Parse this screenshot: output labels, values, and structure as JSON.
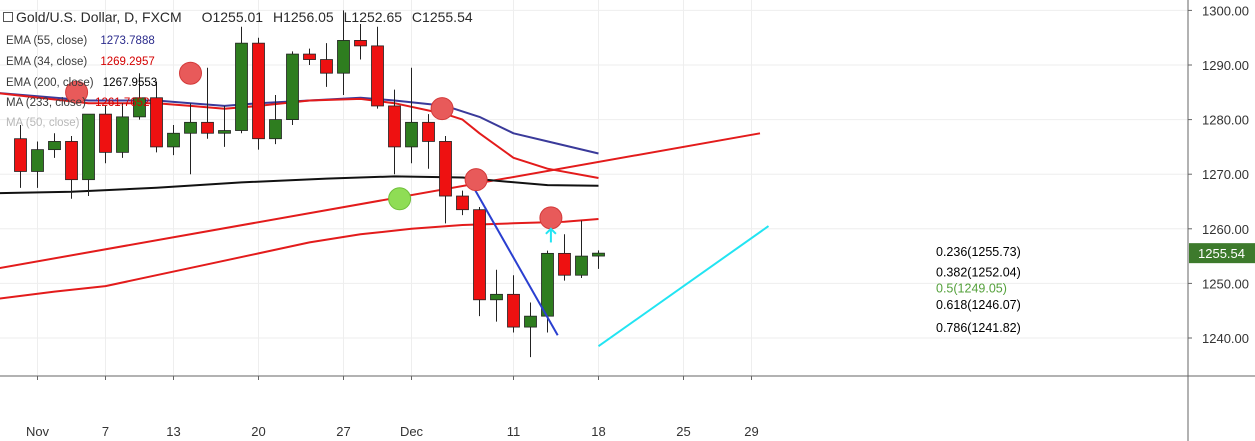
{
  "header": {
    "symbol": "Gold/U.S. Dollar, D, FXCM",
    "ohlc": [
      {
        "k": "O",
        "v": "1255.01"
      },
      {
        "k": "H",
        "v": "1256.05"
      },
      {
        "k": "L",
        "v": "1252.65"
      },
      {
        "k": "C",
        "v": "1255.54"
      }
    ]
  },
  "indicators": [
    {
      "label": "EMA (55, close)",
      "value": "1273.7888",
      "color": "#2b2b8c"
    },
    {
      "label": "EMA (34, close)",
      "value": "1269.2957",
      "color": "#d40000"
    },
    {
      "label": "EMA (200, close)",
      "value": "1267.9553",
      "color": "#000000"
    },
    {
      "label": "MA (233, close)",
      "value": "1261.7652",
      "color": "#d40000"
    },
    {
      "label": "MA (50, close)",
      "value": "",
      "color": "#aaaaaa"
    }
  ],
  "colors": {
    "up": "#2e7d1f",
    "down": "#ee1111",
    "ema55": "#3a3a9a",
    "ema34": "#e31b1b",
    "ema200": "#111111",
    "ma233": "#e31b1b",
    "trend": "#e31b1b",
    "fib_down": "#2a3fd0",
    "fib_up": "#22e4f2",
    "marker_red": "#e85a5a",
    "marker_green": "#8fdd55",
    "last_price_bg": "#3d7a2c",
    "grid": "#eeeeee",
    "axis_text": "#333333"
  },
  "chart_data": {
    "type": "candlestick",
    "title": "Gold/U.S. Dollar, D, FXCM",
    "ylim": [
      1231,
      1303
    ],
    "y_ticks": [
      1240,
      1250,
      1260,
      1270,
      1280,
      1290,
      1300
    ],
    "y_tick_labels": [
      "1240.00",
      "1250.00",
      "1260.00",
      "1270.00",
      "1280.00",
      "1290.00",
      "1300.00"
    ],
    "x_tick_labels": [
      {
        "t": 0,
        "label": "Nov"
      },
      {
        "t": 4,
        "label": "7"
      },
      {
        "t": 8,
        "label": "13"
      },
      {
        "t": 13,
        "label": "20"
      },
      {
        "t": 18,
        "label": "27"
      },
      {
        "t": 22,
        "label": "Dec"
      },
      {
        "t": 28,
        "label": "11"
      },
      {
        "t": 33,
        "label": "18"
      },
      {
        "t": 38,
        "label": "25"
      },
      {
        "t": 42,
        "label": "29"
      }
    ],
    "candles": [
      {
        "t": -1,
        "o": 1276.5,
        "h": 1279.0,
        "l": 1267.5,
        "c": 1270.5
      },
      {
        "t": 0,
        "o": 1270.5,
        "h": 1276.0,
        "l": 1267.5,
        "c": 1274.5
      },
      {
        "t": 1,
        "o": 1274.5,
        "h": 1277.5,
        "l": 1273.0,
        "c": 1276.0
      },
      {
        "t": 2,
        "o": 1276.0,
        "h": 1277.0,
        "l": 1265.5,
        "c": 1269.0
      },
      {
        "t": 3,
        "o": 1269.0,
        "h": 1281.0,
        "l": 1266.0,
        "c": 1281.0
      },
      {
        "t": 4,
        "o": 1281.0,
        "h": 1282.5,
        "l": 1272.0,
        "c": 1274.0
      },
      {
        "t": 5,
        "o": 1274.0,
        "h": 1283.0,
        "l": 1273.0,
        "c": 1280.5
      },
      {
        "t": 6,
        "o": 1280.5,
        "h": 1288.5,
        "l": 1280.0,
        "c": 1284.0
      },
      {
        "t": 7,
        "o": 1284.0,
        "h": 1287.0,
        "l": 1274.0,
        "c": 1275.0
      },
      {
        "t": 8,
        "o": 1275.0,
        "h": 1279.0,
        "l": 1273.5,
        "c": 1277.5
      },
      {
        "t": 9,
        "o": 1277.5,
        "h": 1283.0,
        "l": 1270.0,
        "c": 1279.5
      },
      {
        "t": 10,
        "o": 1279.5,
        "h": 1289.5,
        "l": 1276.5,
        "c": 1277.5
      },
      {
        "t": 11,
        "o": 1277.5,
        "h": 1282.5,
        "l": 1275.0,
        "c": 1278.0
      },
      {
        "t": 12,
        "o": 1278.0,
        "h": 1297.0,
        "l": 1277.5,
        "c": 1294.0
      },
      {
        "t": 13,
        "o": 1294.0,
        "h": 1295.0,
        "l": 1274.5,
        "c": 1276.5
      },
      {
        "t": 14,
        "o": 1276.5,
        "h": 1284.5,
        "l": 1275.5,
        "c": 1280.0
      },
      {
        "t": 15,
        "o": 1280.0,
        "h": 1292.5,
        "l": 1279.0,
        "c": 1292.0
      },
      {
        "t": 16,
        "o": 1292.0,
        "h": 1293.0,
        "l": 1290.0,
        "c": 1291.0
      },
      {
        "t": 17,
        "o": 1291.0,
        "h": 1294.0,
        "l": 1286.0,
        "c": 1288.5
      },
      {
        "t": 18,
        "o": 1288.5,
        "h": 1300.0,
        "l": 1284.5,
        "c": 1294.5
      },
      {
        "t": 19,
        "o": 1294.5,
        "h": 1297.5,
        "l": 1291.0,
        "c": 1293.5
      },
      {
        "t": 20,
        "o": 1293.5,
        "h": 1297.0,
        "l": 1282.0,
        "c": 1282.5
      },
      {
        "t": 21,
        "o": 1282.5,
        "h": 1285.5,
        "l": 1270.0,
        "c": 1275.0
      },
      {
        "t": 22,
        "o": 1275.0,
        "h": 1289.5,
        "l": 1272.0,
        "c": 1279.5
      },
      {
        "t": 23,
        "o": 1279.5,
        "h": 1281.0,
        "l": 1271.0,
        "c": 1276.0
      },
      {
        "t": 24,
        "o": 1276.0,
        "h": 1277.0,
        "l": 1261.0,
        "c": 1266.0
      },
      {
        "t": 25,
        "o": 1266.0,
        "h": 1267.0,
        "l": 1262.5,
        "c": 1263.5
      },
      {
        "t": 26,
        "o": 1263.5,
        "h": 1264.0,
        "l": 1244.0,
        "c": 1247.0
      },
      {
        "t": 27,
        "o": 1247.0,
        "h": 1252.5,
        "l": 1243.0,
        "c": 1248.0
      },
      {
        "t": 28,
        "o": 1248.0,
        "h": 1251.5,
        "l": 1241.0,
        "c": 1242.0
      },
      {
        "t": 29,
        "o": 1242.0,
        "h": 1246.5,
        "l": 1236.5,
        "c": 1244.0
      },
      {
        "t": 30,
        "o": 1244.0,
        "h": 1256.0,
        "l": 1241.0,
        "c": 1255.5
      },
      {
        "t": 31,
        "o": 1255.5,
        "h": 1259.0,
        "l": 1250.5,
        "c": 1251.5
      },
      {
        "t": 32,
        "o": 1251.5,
        "h": 1261.5,
        "l": 1251.0,
        "c": 1255.0
      },
      {
        "t": 33,
        "o": 1255.01,
        "h": 1256.05,
        "l": 1252.65,
        "c": 1255.54
      }
    ],
    "ema55": [
      [
        -2.8,
        1285.0
      ],
      [
        3,
        1283.5
      ],
      [
        7,
        1283.5
      ],
      [
        9,
        1283.0
      ],
      [
        11,
        1282.5
      ],
      [
        13,
        1283.0
      ],
      [
        16,
        1283.5
      ],
      [
        19,
        1284.0
      ],
      [
        21,
        1283.5
      ],
      [
        24,
        1282.5
      ],
      [
        26,
        1280.5
      ],
      [
        28,
        1277.5
      ],
      [
        30,
        1276.0
      ],
      [
        33,
        1273.8
      ]
    ],
    "ema34": [
      [
        -2.8,
        1285.0
      ],
      [
        3,
        1283.0
      ],
      [
        7,
        1283.0
      ],
      [
        9,
        1282.5
      ],
      [
        11,
        1282.0
      ],
      [
        13,
        1282.5
      ],
      [
        16,
        1283.5
      ],
      [
        19,
        1283.8
      ],
      [
        21,
        1283.0
      ],
      [
        24,
        1281.0
      ],
      [
        25,
        1280.0
      ],
      [
        26,
        1277.5
      ],
      [
        28,
        1273.0
      ],
      [
        30,
        1271.0
      ],
      [
        33,
        1269.3
      ]
    ],
    "ema200": [
      [
        -2.8,
        1266.5
      ],
      [
        2,
        1266.8
      ],
      [
        7,
        1267.5
      ],
      [
        12,
        1268.5
      ],
      [
        17,
        1269.2
      ],
      [
        21,
        1269.6
      ],
      [
        25,
        1269.4
      ],
      [
        27,
        1268.8
      ],
      [
        30,
        1268.0
      ],
      [
        33,
        1267.9
      ]
    ],
    "ma233": [
      [
        -2.8,
        1247.0
      ],
      [
        1,
        1248.5
      ],
      [
        4,
        1249.5
      ],
      [
        7,
        1251.5
      ],
      [
        10,
        1253.5
      ],
      [
        13,
        1255.5
      ],
      [
        16,
        1257.5
      ],
      [
        19,
        1259.0
      ],
      [
        22,
        1260.0
      ],
      [
        25,
        1260.7
      ],
      [
        28,
        1261.0
      ],
      [
        31,
        1261.3
      ],
      [
        33,
        1261.8
      ]
    ],
    "trendline": [
      [
        -2.8,
        1252.5
      ],
      [
        42.5,
        1277.5
      ]
    ],
    "fib_down_line": [
      [
        25.3,
        1269.5
      ],
      [
        30.6,
        1240.5
      ]
    ],
    "fib_up_line": [
      [
        33,
        1238.5
      ],
      [
        43,
        1260.5
      ]
    ],
    "fib_levels": [
      {
        "label": "0.236(1255.73)",
        "y": 1255.73,
        "color": "#000000"
      },
      {
        "label": "0.382(1252.04)",
        "y": 1252.04,
        "color": "#000000"
      },
      {
        "label": "0.5(1249.05)",
        "y": 1249.05,
        "color": "#55a13c"
      },
      {
        "label": "0.618(1246.07)",
        "y": 1246.07,
        "color": "#000000"
      },
      {
        "label": "0.786(1241.82)",
        "y": 1241.82,
        "color": "#000000"
      }
    ],
    "markers": [
      {
        "t": 2.3,
        "y": 1285.0,
        "kind": "red"
      },
      {
        "t": 9.0,
        "y": 1288.5,
        "kind": "red"
      },
      {
        "t": 21.3,
        "y": 1265.5,
        "kind": "green"
      },
      {
        "t": 23.8,
        "y": 1282.0,
        "kind": "red"
      },
      {
        "t": 25.8,
        "y": 1269.0,
        "kind": "red"
      },
      {
        "t": 30.2,
        "y": 1262.0,
        "kind": "red"
      }
    ],
    "arrow": {
      "t": 30.2,
      "y_from": 1257.5,
      "y_to": 1260.0
    },
    "last_price": {
      "y": 1255.54,
      "label": "1255.54"
    }
  }
}
